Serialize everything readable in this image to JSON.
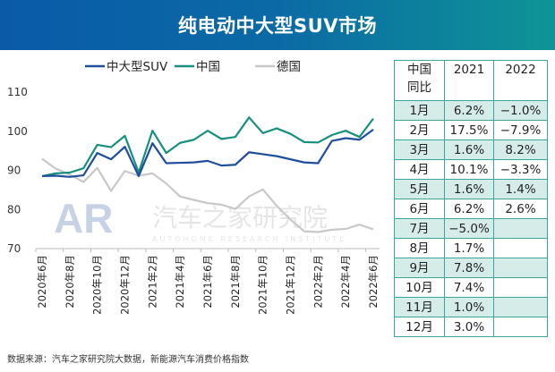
{
  "title": "纯电动中大型SUV市场",
  "footer": "数据来源：汽车之家研究院大数据，新能源汽车消费价格指数",
  "watermark": {
    "logo": "AR",
    "name": "汽车之家研究院",
    "sub": "AUTOHOME RESEARCH INSTITUTE"
  },
  "chart_data": {
    "type": "line",
    "x": [
      "2020年6月",
      "2020年7月",
      "2020年8月",
      "2020年9月",
      "2020年10月",
      "2020年11月",
      "2020年12月",
      "2021年1月",
      "2021年2月",
      "2021年3月",
      "2021年4月",
      "2021年5月",
      "2021年6月",
      "2021年7月",
      "2021年8月",
      "2021年9月",
      "2021年10月",
      "2021年11月",
      "2021年12月",
      "2022年1月",
      "2022年2月",
      "2022年3月",
      "2022年4月",
      "2022年5月",
      "2022年6月"
    ],
    "xtick_labels": [
      "2020年6月",
      "2020年8月",
      "2020年10月",
      "2020年12月",
      "2021年2月",
      "2021年4月",
      "2021年6月",
      "2021年8月",
      "2021年10月",
      "2021年12月",
      "2022年2月",
      "2022年4月",
      "2022年6月"
    ],
    "ylim": [
      70,
      110
    ],
    "yticks": [
      "70",
      "80",
      "90",
      "100",
      "110"
    ],
    "grid": false,
    "legend_position": "top",
    "series": [
      {
        "name": "中大型SUV",
        "color": "#1f4e9c",
        "values": [
          88.3,
          88.4,
          88.1,
          88.5,
          94.2,
          92.6,
          95.8,
          88.3,
          96.7,
          91.6,
          91.7,
          91.8,
          92.2,
          91.0,
          91.2,
          94.4,
          93.9,
          93.4,
          92.6,
          91.8,
          91.6,
          97.3,
          98.0,
          97.6,
          100.2
        ]
      },
      {
        "name": "中国",
        "color": "#17907f",
        "values": [
          88.3,
          89.0,
          89.2,
          90.3,
          96.3,
          95.7,
          98.6,
          89.2,
          99.9,
          94.2,
          96.8,
          97.6,
          99.9,
          97.8,
          98.3,
          103.3,
          99.3,
          100.5,
          99.1,
          97.0,
          96.9,
          98.8,
          99.9,
          98.3,
          103.0
        ]
      },
      {
        "name": "德国",
        "color": "#c8c8c8",
        "values": [
          92.7,
          90.2,
          88.7,
          86.8,
          90.4,
          84.5,
          89.6,
          88.4,
          89.0,
          86.4,
          83.1,
          82.2,
          81.4,
          81.0,
          79.9,
          83.1,
          84.9,
          80.7,
          77.2,
          74.2,
          74.0,
          74.6,
          74.8,
          75.9,
          74.7
        ]
      }
    ]
  },
  "table": {
    "header": [
      "中国\n同比",
      "2021",
      "2022"
    ],
    "header_line1": "中国",
    "header_line2": "同比",
    "rows": [
      [
        "1月",
        "6.2%",
        "−1.0%"
      ],
      [
        "2月",
        "17.5%",
        "−7.9%"
      ],
      [
        "3月",
        "1.6%",
        "8.2%"
      ],
      [
        "4月",
        "10.1%",
        "−3.3%"
      ],
      [
        "5月",
        "1.6%",
        "1.4%"
      ],
      [
        "6月",
        "6.2%",
        "2.6%"
      ],
      [
        "7月",
        "−5.0%",
        ""
      ],
      [
        "8月",
        "1.7%",
        ""
      ],
      [
        "9月",
        "7.8%",
        ""
      ],
      [
        "10月",
        "7.4%",
        ""
      ],
      [
        "11月",
        "1.0%",
        ""
      ],
      [
        "12月",
        "3.0%",
        ""
      ]
    ]
  }
}
